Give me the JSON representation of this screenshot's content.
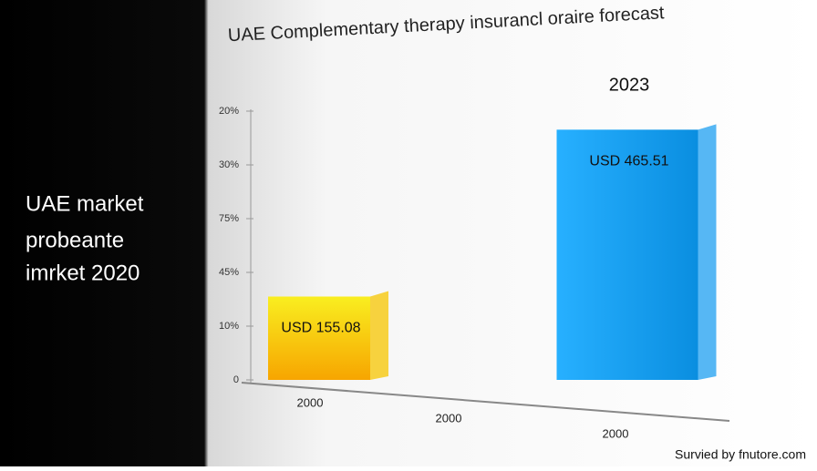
{
  "side_panel": {
    "lines": [
      "UAE market",
      "probeante",
      "imrket 2020"
    ]
  },
  "chart_data": {
    "type": "bar",
    "title": "UAE Complementary therapy insurancl oraire forecast",
    "annotation": "2023",
    "categories": [
      "2000",
      "2000",
      "2000"
    ],
    "values": [
      155.08,
      null,
      465.51
    ],
    "value_labels": [
      "USD 155.08",
      null,
      "USD 465.51"
    ],
    "colors": [
      "#f7c600",
      null,
      "#1e9ff0"
    ],
    "ylim": [
      0,
      500
    ],
    "yticks": [
      0,
      {
        "value": 100,
        "label": "10%"
      },
      {
        "value": 200,
        "label": "45%"
      },
      {
        "value": 300,
        "label": "75%"
      },
      {
        "value": 400,
        "label": "30%"
      },
      {
        "value": 500,
        "label": "20%"
      }
    ],
    "source": "Survied by fnutore.com"
  }
}
